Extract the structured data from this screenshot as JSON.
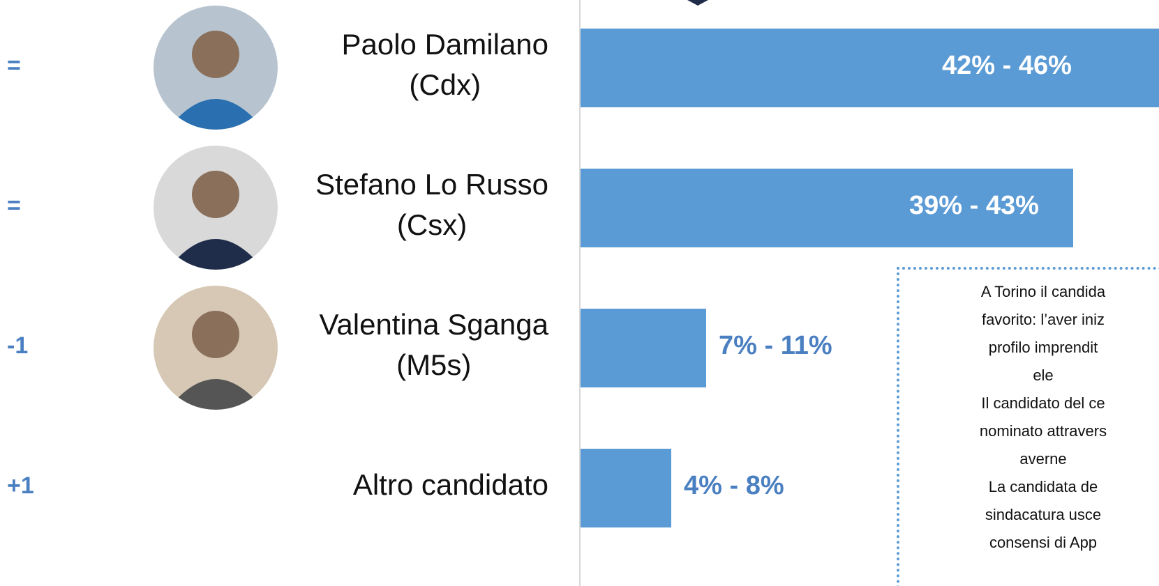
{
  "rows": [
    {
      "change": "=",
      "name": "Paolo Damilano",
      "party": "(Cdx)",
      "range": "42% - 46%"
    },
    {
      "change": "=",
      "name": "Stefano Lo Russo",
      "party": "(Csx)",
      "range": "39% - 43%"
    },
    {
      "change": "-1",
      "name": "Valentina Sganga",
      "party": "(M5s)",
      "range": "7% - 11%"
    },
    {
      "change": "+1",
      "name": "Altro candidato",
      "range": "4% - 8%"
    }
  ],
  "note": [
    "A Torino il candida",
    "favorito: l’aver iniz",
    "profilo imprendit",
    "ele",
    "Il candidato del ce",
    "nominato attravers",
    "averne",
    "La candidata de",
    "sindacatura usce",
    "consensi di App"
  ]
}
